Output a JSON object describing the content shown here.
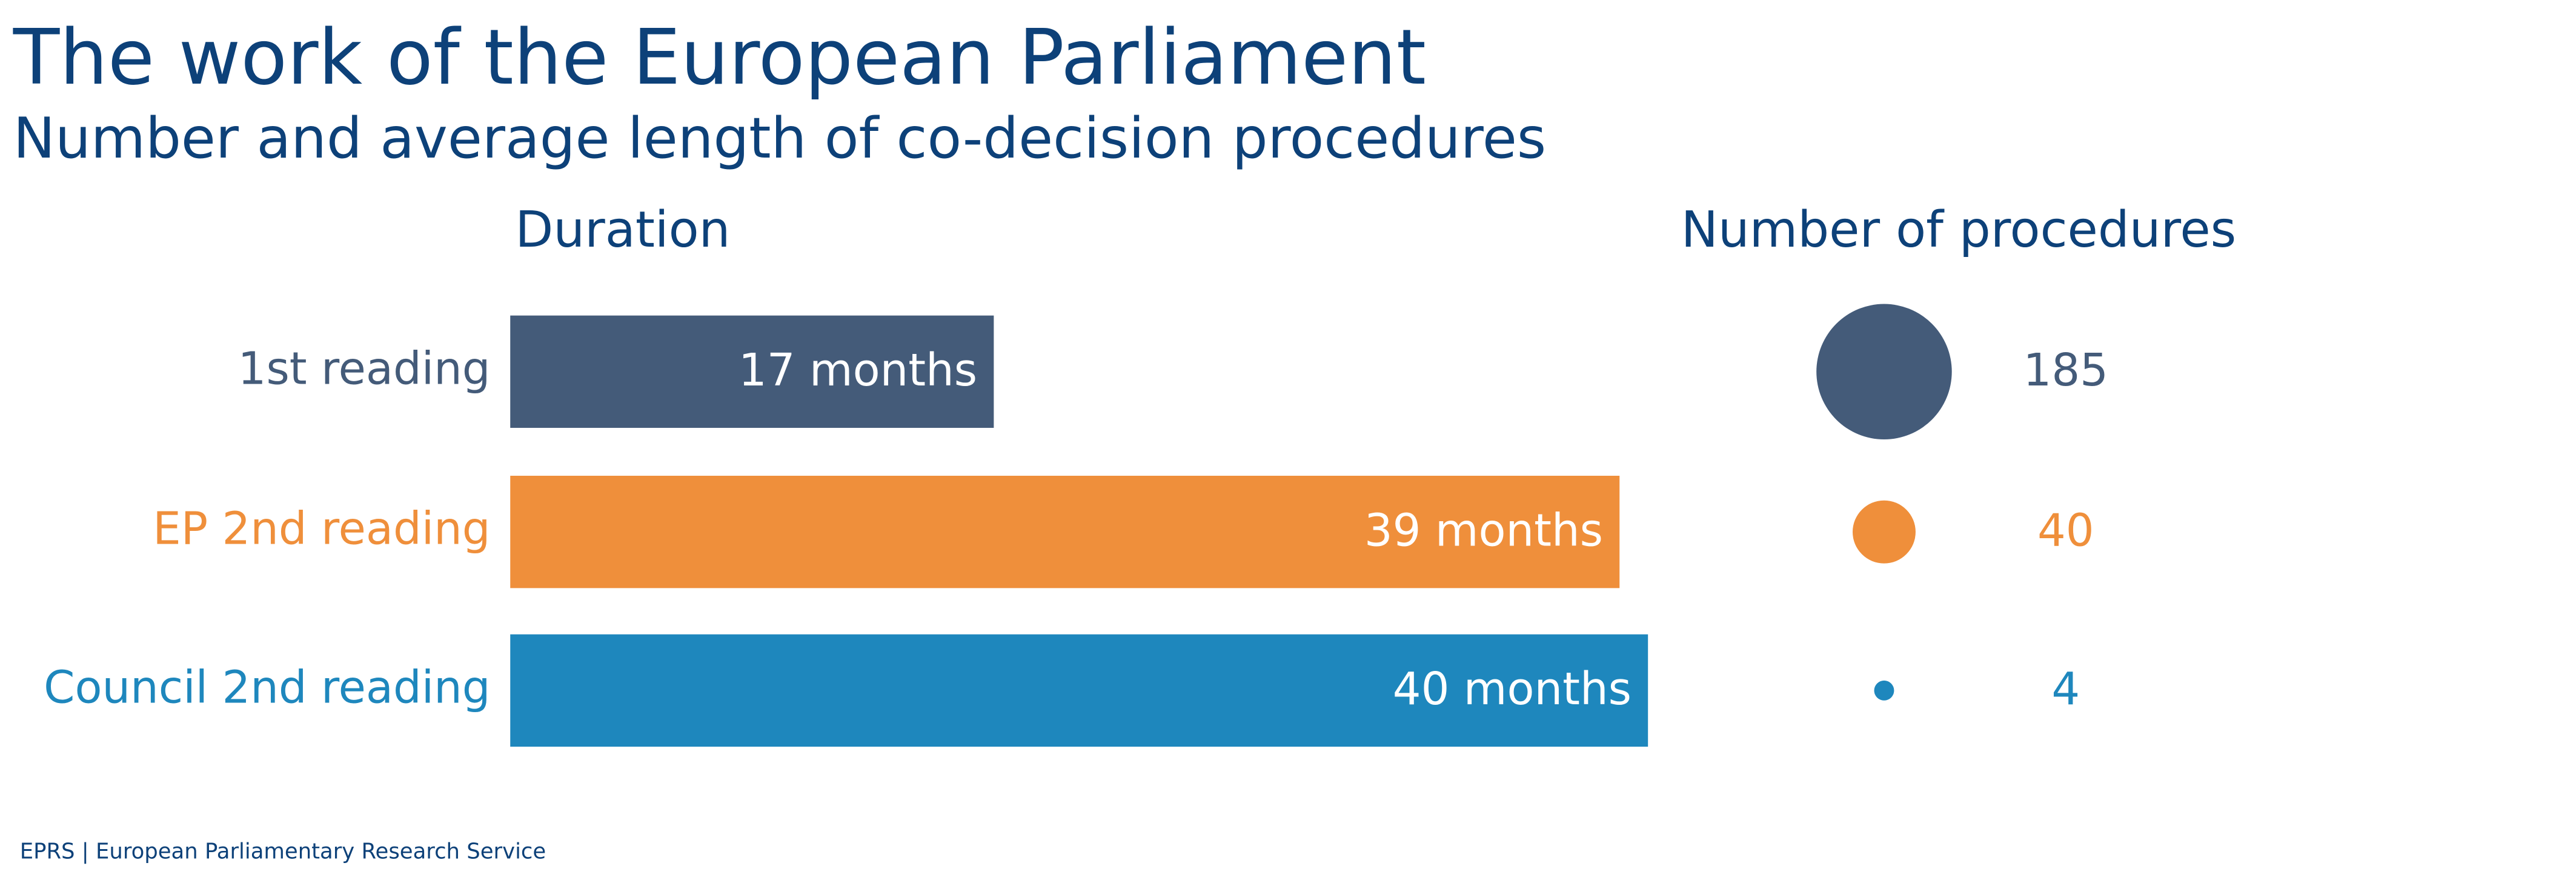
{
  "chart_data": {
    "type": "bar",
    "title": "The work of the European Parliament",
    "subtitle": "Number and average length of co-decision procedures",
    "duration_title": "Duration",
    "count_title": "Number of procedures",
    "categories": [
      "1st reading",
      "EP 2nd reading",
      "Council 2nd reading"
    ],
    "colors": [
      "#445b79",
      "#ef8f3b",
      "#1e87bd"
    ],
    "values": [
      17,
      39,
      40
    ],
    "value_labels": [
      "17 months",
      "39 months",
      "40 months"
    ],
    "counts": [
      185,
      40,
      4
    ],
    "source": "EPRS | European Parliamentary Research Service"
  }
}
